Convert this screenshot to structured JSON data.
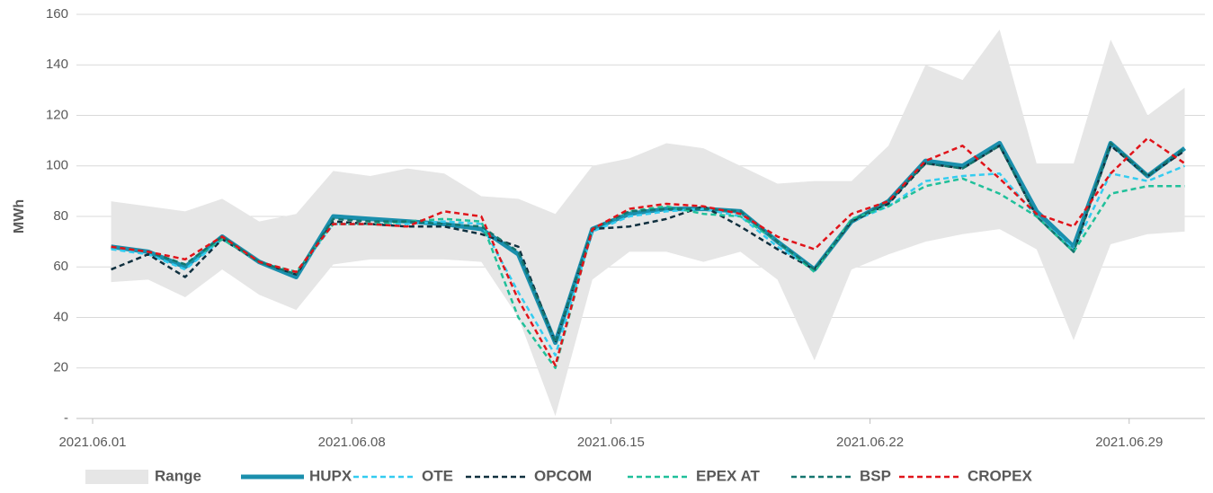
{
  "chart_data": {
    "type": "line",
    "y_label": "MWh",
    "categories": [
      "2021.06.01",
      null,
      null,
      null,
      null,
      null,
      null,
      "2021.06.08",
      null,
      null,
      null,
      null,
      null,
      null,
      "2021.06.15",
      null,
      null,
      null,
      null,
      null,
      null,
      "2021.06.22",
      null,
      null,
      null,
      null,
      null,
      null,
      "2021.06.29",
      null
    ],
    "ylim": [
      0,
      160
    ],
    "yticks": [
      {
        "value": 0,
        "label": "-"
      },
      20,
      40,
      60,
      80,
      100,
      120,
      140,
      160
    ],
    "grid": true,
    "legend": "bottom",
    "range": {
      "name": "Range",
      "color": "#e6e6e6",
      "high": [
        86,
        84,
        82,
        87,
        78,
        81,
        98,
        96,
        99,
        97,
        88,
        87,
        81,
        100,
        103,
        109,
        107,
        100,
        93,
        94,
        94,
        108,
        140,
        134,
        154,
        101,
        101,
        150,
        120,
        131
      ],
      "low": [
        54,
        55,
        48,
        59,
        49,
        43,
        61,
        63,
        63,
        63,
        62,
        40,
        1,
        55,
        66,
        66,
        62,
        66,
        55,
        23,
        59,
        65,
        70,
        73,
        75,
        67,
        31,
        69,
        73,
        74
      ]
    },
    "series": [
      {
        "name": "HUPX",
        "color": "#1a8fad",
        "style": "solid",
        "values": [
          68,
          66,
          60,
          72,
          62,
          56,
          80,
          79,
          78,
          77,
          75,
          65,
          30,
          75,
          81,
          83,
          83,
          82,
          70,
          59,
          78,
          86,
          102,
          100,
          109,
          82,
          68,
          109,
          96,
          107
        ]
      },
      {
        "name": "OTE",
        "color": "#33ccf0",
        "style": "dashed",
        "values": [
          67,
          65,
          59,
          71,
          62,
          57,
          77,
          77,
          77,
          78,
          77,
          50,
          25,
          74,
          80,
          82,
          83,
          80,
          68,
          59,
          78,
          84,
          94,
          96,
          97,
          80,
          67,
          97,
          94,
          100
        ]
      },
      {
        "name": "OPCOM",
        "color": "#10303f",
        "style": "dashed",
        "values": [
          59,
          65,
          56,
          71,
          62,
          57,
          78,
          77,
          76,
          76,
          73,
          68,
          30,
          75,
          76,
          79,
          84,
          76,
          67,
          59,
          78,
          85,
          101,
          99,
          108,
          80,
          66,
          108,
          96,
          106
        ]
      },
      {
        "name": "EPEX AT",
        "color": "#20c09a",
        "style": "dashed",
        "values": [
          68,
          66,
          61,
          71,
          62,
          58,
          77,
          77,
          78,
          79,
          78,
          40,
          20,
          75,
          82,
          84,
          81,
          80,
          70,
          58,
          79,
          84,
          92,
          95,
          89,
          80,
          66,
          89,
          92,
          92
        ]
      },
      {
        "name": "BSP",
        "color": "#14756e",
        "style": "dashed",
        "values": [
          68,
          66,
          61,
          72,
          62,
          57,
          79,
          78,
          78,
          77,
          76,
          66,
          30,
          75,
          82,
          83,
          83,
          82,
          70,
          59,
          78,
          86,
          101,
          99,
          108,
          80,
          66,
          109,
          96,
          107
        ]
      },
      {
        "name": "CROPEX",
        "color": "#e0141a",
        "style": "dashed",
        "values": [
          68,
          66,
          63,
          72,
          62,
          58,
          77,
          77,
          76,
          82,
          80,
          47,
          21,
          75,
          83,
          85,
          84,
          81,
          72,
          67,
          81,
          86,
          102,
          108,
          95,
          81,
          76,
          97,
          111,
          101
        ]
      }
    ]
  }
}
